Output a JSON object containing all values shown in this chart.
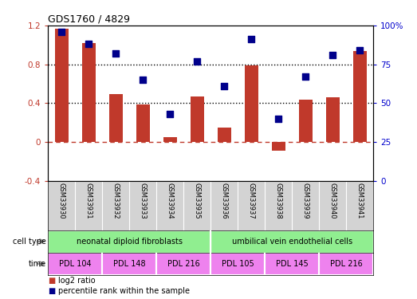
{
  "title": "GDS1760 / 4829",
  "samples": [
    "GSM33930",
    "GSM33931",
    "GSM33932",
    "GSM33933",
    "GSM33934",
    "GSM33935",
    "GSM33936",
    "GSM33937",
    "GSM33938",
    "GSM33939",
    "GSM33940",
    "GSM33941"
  ],
  "log2_ratio": [
    1.17,
    1.02,
    0.49,
    0.39,
    0.05,
    0.47,
    0.15,
    0.79,
    -0.09,
    0.44,
    0.46,
    0.94
  ],
  "percentile_rank": [
    0.96,
    0.88,
    0.82,
    0.65,
    0.43,
    0.77,
    0.61,
    0.91,
    0.4,
    0.67,
    0.81,
    0.84
  ],
  "bar_color": "#c0392b",
  "dot_color": "#00008b",
  "ylim_left": [
    -0.4,
    1.2
  ],
  "ylim_right": [
    0.0,
    1.0
  ],
  "yticks_left": [
    -0.4,
    0.0,
    0.4,
    0.8,
    1.2
  ],
  "ytick_labels_left": [
    "-0.4",
    "0",
    "0.4",
    "0.8",
    "1.2"
  ],
  "yticks_right": [
    0.0,
    0.25,
    0.5,
    0.75,
    1.0
  ],
  "ytick_labels_right": [
    "0",
    "25",
    "50",
    "75",
    "100%"
  ],
  "hlines": [
    0.4,
    0.8
  ],
  "zero_line_color": "#c0392b",
  "hline_color": "black",
  "bar_width": 0.5,
  "dot_size": 40,
  "background_color": "#ffffff",
  "cell_type_color": "#90EE90",
  "time_color_light": "#f5a0f5",
  "time_color_dark": "#dd44dd",
  "sample_bg_color": "#d3d3d3",
  "cell_type_groups": [
    {
      "label": "neonatal diploid fibroblasts",
      "start": 0,
      "end": 6
    },
    {
      "label": "umbilical vein endothelial cells",
      "start": 6,
      "end": 12
    }
  ],
  "time_groups": [
    {
      "label": "PDL 104",
      "start": 0,
      "end": 2
    },
    {
      "label": "PDL 148",
      "start": 2,
      "end": 4
    },
    {
      "label": "PDL 216",
      "start": 4,
      "end": 6
    },
    {
      "label": "PDL 105",
      "start": 6,
      "end": 8
    },
    {
      "label": "PDL 145",
      "start": 8,
      "end": 10
    },
    {
      "label": "PDL 216",
      "start": 10,
      "end": 12
    }
  ]
}
